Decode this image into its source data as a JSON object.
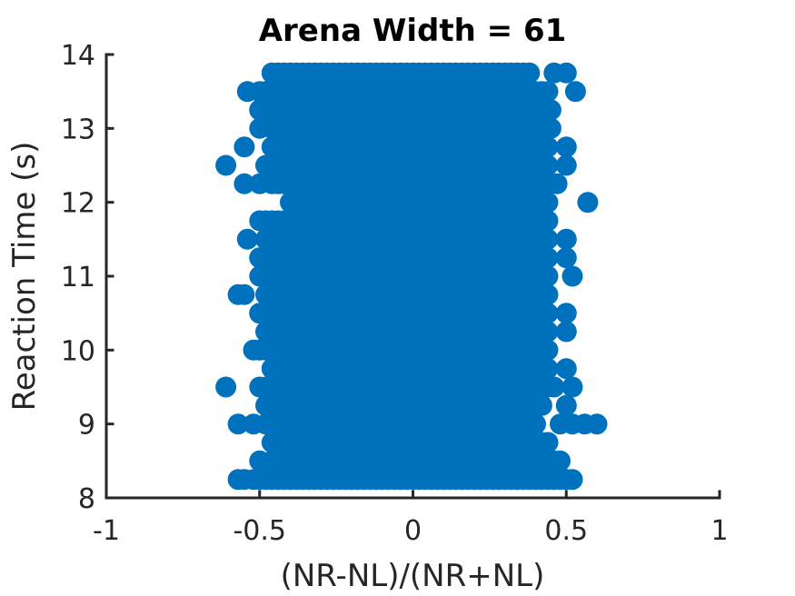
{
  "chart_data": {
    "type": "scatter",
    "title": "Arena Width =  61",
    "xlabel": "(NR-NL)/(NR+NL)",
    "ylabel": "Reaction Time (s)",
    "xlim": [
      -1,
      1
    ],
    "ylim": [
      8,
      14
    ],
    "xticks": [
      -1,
      -0.5,
      0,
      0.5,
      1
    ],
    "xtick_labels": [
      "-1",
      "-0.5",
      "0",
      "0.5",
      "1"
    ],
    "yticks": [
      8,
      9,
      10,
      11,
      12,
      13,
      14
    ],
    "ytick_labels": [
      "8",
      "9",
      "10",
      "11",
      "12",
      "13",
      "14"
    ],
    "grid": false,
    "color": "#0072BD",
    "series": [
      {
        "band_y": [
          8.25,
          8.5,
          8.75,
          9.0,
          9.25,
          9.5,
          9.75,
          10.0,
          10.25,
          10.5,
          10.75,
          11.0,
          11.25,
          11.5,
          11.75,
          12.0,
          12.25,
          12.5,
          12.75,
          13.0,
          13.25,
          13.5,
          13.75
        ],
        "band_x_range": [
          [
            -0.52,
            0.52
          ],
          [
            -0.46,
            0.46
          ],
          [
            -0.46,
            0.44
          ],
          [
            -0.48,
            0.4
          ],
          [
            -0.48,
            0.42
          ],
          [
            -0.48,
            0.46
          ],
          [
            -0.46,
            0.44
          ],
          [
            -0.5,
            0.44
          ],
          [
            -0.48,
            0.44
          ],
          [
            -0.5,
            0.44
          ],
          [
            -0.48,
            0.44
          ],
          [
            -0.46,
            0.44
          ],
          [
            -0.5,
            0.44
          ],
          [
            -0.48,
            0.44
          ],
          [
            -0.5,
            0.44
          ],
          [
            -0.4,
            0.44
          ],
          [
            -0.46,
            0.44
          ],
          [
            -0.46,
            0.44
          ],
          [
            -0.46,
            0.44
          ],
          [
            -0.46,
            0.44
          ],
          [
            -0.5,
            0.44
          ],
          [
            -0.5,
            0.44
          ],
          [
            -0.46,
            0.38
          ]
        ],
        "outliers": [
          [
            -0.57,
            8.25
          ],
          [
            -0.55,
            8.25
          ],
          [
            0.5,
            8.25
          ],
          [
            0.48,
            8.5
          ],
          [
            -0.5,
            8.5
          ],
          [
            0.44,
            8.75
          ],
          [
            -0.57,
            9.0
          ],
          [
            -0.52,
            9.0
          ],
          [
            0.48,
            9.0
          ],
          [
            0.52,
            9.0
          ],
          [
            0.56,
            9.0
          ],
          [
            0.6,
            9.0
          ],
          [
            0.42,
            9.25
          ],
          [
            0.5,
            9.25
          ],
          [
            -0.61,
            9.5
          ],
          [
            -0.5,
            9.5
          ],
          [
            0.52,
            9.5
          ],
          [
            0.5,
            9.75
          ],
          [
            -0.52,
            10.0
          ],
          [
            -0.5,
            10.0
          ],
          [
            0.5,
            10.25
          ],
          [
            -0.5,
            10.5
          ],
          [
            0.5,
            10.5
          ],
          [
            -0.57,
            10.75
          ],
          [
            -0.55,
            10.75
          ],
          [
            -0.47,
            10.75
          ],
          [
            0.52,
            11.0
          ],
          [
            -0.5,
            11.0
          ],
          [
            -0.5,
            11.25
          ],
          [
            0.5,
            11.25
          ],
          [
            -0.54,
            11.5
          ],
          [
            0.5,
            11.5
          ],
          [
            0.57,
            12.0
          ],
          [
            -0.55,
            12.25
          ],
          [
            -0.5,
            12.25
          ],
          [
            0.47,
            12.25
          ],
          [
            -0.61,
            12.5
          ],
          [
            -0.48,
            12.5
          ],
          [
            0.5,
            12.5
          ],
          [
            -0.55,
            12.75
          ],
          [
            0.5,
            12.75
          ],
          [
            -0.5,
            13.0
          ],
          [
            0.45,
            13.0
          ],
          [
            -0.5,
            13.25
          ],
          [
            0.45,
            13.25
          ],
          [
            -0.54,
            13.5
          ],
          [
            0.53,
            13.5
          ],
          [
            0.46,
            13.75
          ],
          [
            0.5,
            13.75
          ]
        ]
      }
    ]
  }
}
